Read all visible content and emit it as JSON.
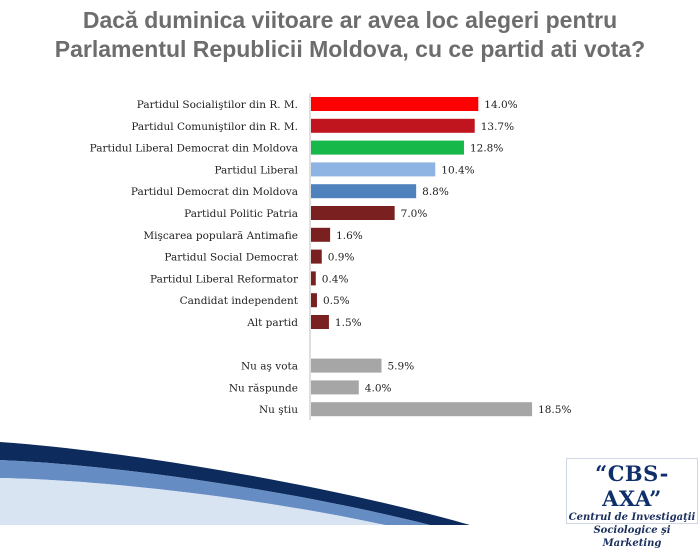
{
  "title_line1": "Dacă duminica viitoare ar avea loc alegeri pentru",
  "title_line2": "Parlamentul Republicii Moldova, cu ce partid ati vota?",
  "chart_data": {
    "type": "bar",
    "orientation": "horizontal",
    "title": "Dacă duminica viitoare ar avea loc alegeri pentru Parlamentul Republicii Moldova, cu ce partid ati vota?",
    "categories": [
      "Partidul Socialiştilor din R. M.",
      "Partidul Comuniştilor din R. M.",
      "Partidul Liberal Democrat din Moldova",
      "Partidul Liberal",
      "Partidul Democrat din Moldova",
      "Partidul Politic Patria",
      "Mişcarea populară Antimafie",
      "Partidul Social Democrat",
      "Partidul Liberal Reformator",
      "Candidat independent",
      "Alt partid",
      "Nu aş vota",
      "Nu răspunde",
      "Nu ştiu"
    ],
    "values": [
      14.0,
      13.7,
      12.8,
      10.4,
      8.8,
      7.0,
      1.6,
      0.9,
      0.4,
      0.5,
      1.5,
      5.9,
      4.0,
      18.5
    ],
    "value_labels": [
      "14.0%",
      "13.7%",
      "12.8%",
      "10.4%",
      "8.8%",
      "7.0%",
      "1.6%",
      "0.9%",
      "0.4%",
      "0.5%",
      "1.5%",
      "5.9%",
      "4.0%",
      "18.5%"
    ],
    "colors": [
      "#ff0000",
      "#c0141e",
      "#16b84a",
      "#8eb4e3",
      "#4f81bd",
      "#7b2020",
      "#7b2020",
      "#7b2020",
      "#7b2020",
      "#7b2020",
      "#7b2020",
      "#a6a6a6",
      "#a6a6a6",
      "#a6a6a6"
    ],
    "unit": "%",
    "xlim": [
      0,
      20
    ],
    "grid": false,
    "legend": "none"
  },
  "logo": {
    "name": "“CBS-AXA”",
    "line1": "Centrul de Investigaţii",
    "line2": "Sociologice şi Marketing"
  }
}
